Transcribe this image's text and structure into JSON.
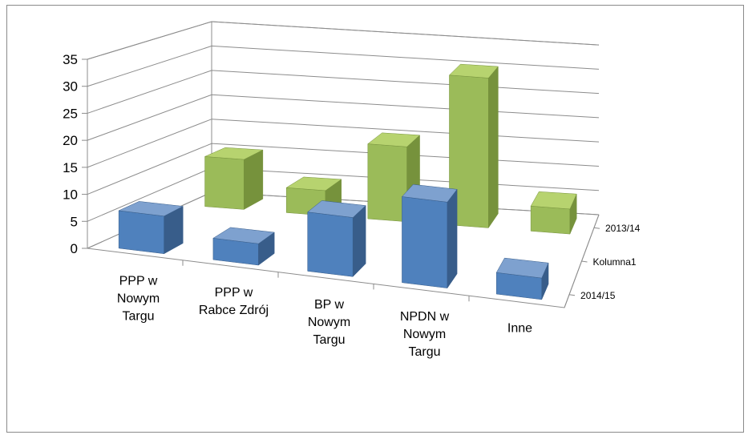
{
  "chart_data": {
    "type": "bar",
    "subtype": "3d-column",
    "title": "",
    "xlabel": "",
    "ylabel": "",
    "ylim": [
      0,
      35
    ],
    "yticks": [
      0,
      5,
      10,
      15,
      20,
      25,
      30,
      35
    ],
    "grid": true,
    "categories": [
      "PPP w Nowym Targu",
      "PPP w Rabce Zdrój",
      "BP w Nowym Targu",
      "NPDN w Nowym Targu",
      "Inne"
    ],
    "category_lines": [
      [
        "PPP w",
        "Nowym",
        "Targu"
      ],
      [
        "PPP w",
        "Rabce Zdrój"
      ],
      [
        "BP w",
        "Nowym",
        "Targu"
      ],
      [
        "NPDN w",
        "Nowym",
        "Targu"
      ],
      [
        "Inne"
      ]
    ],
    "depth_labels": [
      "2013/14",
      "Kolumna1",
      "2014/15"
    ],
    "series": [
      {
        "name": "2013/14",
        "values": [
          10,
          5,
          15,
          30,
          5
        ],
        "color": "#9bbb59",
        "side": "#76923c",
        "top": "#b7d36f"
      },
      {
        "name": "Kolumna1",
        "values": [
          0,
          0,
          0,
          0,
          0
        ],
        "color": "#c0504d",
        "side": "#943634",
        "top": "#d27976"
      },
      {
        "name": "2014/15",
        "values": [
          7,
          4,
          11,
          16,
          4
        ],
        "color": "#4f81bd",
        "side": "#385d8a",
        "top": "#7ea1cf"
      }
    ]
  }
}
